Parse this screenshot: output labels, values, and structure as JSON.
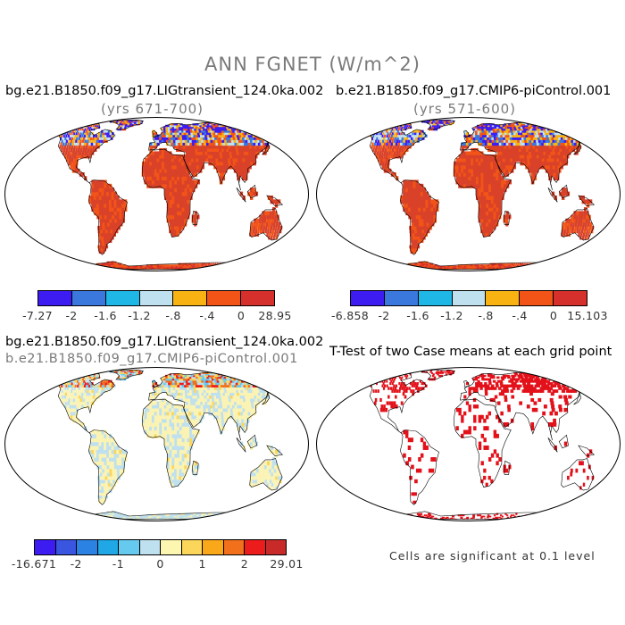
{
  "figure": {
    "title": "ANN FGNET (W/m^2)"
  },
  "panels": [
    {
      "id": "case1",
      "title": "bg.e21.B1850.f09_g17.LIGtransient_124.0ka.002",
      "subtitle": "(yrs 671-700)",
      "colorbar": {
        "colors": [
          "#3d1cf2",
          "#3a78dd",
          "#1fb7e6",
          "#bfe0ee",
          "#f8b313",
          "#f25418",
          "#d6302c"
        ],
        "labels": [
          "-7.27",
          "-2",
          "-1.6",
          "-1.2",
          "-.8",
          "-.4",
          "0",
          "28.95"
        ]
      },
      "land_color": "#d94229",
      "high_lat_palette": [
        "#3d1cf2",
        "#3a78dd",
        "#bfe0ee",
        "#f8b313",
        "#f25418"
      ]
    },
    {
      "id": "case2",
      "title": "b.e21.B1850.f09_g17.CMIP6-piControl.001",
      "subtitle": "(yrs 571-600)",
      "colorbar": {
        "colors": [
          "#3d1cf2",
          "#3a78dd",
          "#1fb7e6",
          "#bfe0ee",
          "#f8b313",
          "#f25418",
          "#d6302c"
        ],
        "labels": [
          "-6.858",
          "-2",
          "-1.6",
          "-1.2",
          "-.8",
          "-.4",
          "0",
          "15.103"
        ]
      },
      "land_color": "#d94229",
      "high_lat_palette": [
        "#3d1cf2",
        "#3a78dd",
        "#bfe0ee",
        "#f8b313",
        "#f25418"
      ]
    },
    {
      "id": "diff",
      "title": "bg.e21.B1850.f09_g17.LIGtransient_124.0ka.002",
      "subtitle": "b.e21.B1850.f09_g17.CMIP6-piControl.001",
      "colorbar": {
        "colors": [
          "#3d1cf2",
          "#3a55e0",
          "#2b82e2",
          "#1fa7e6",
          "#66c9ee",
          "#bfe0ee",
          "#fdf6b0",
          "#fbd65a",
          "#f8a818",
          "#f2701c",
          "#ec1c1c",
          "#c82a2a"
        ],
        "labels": [
          "-16.671",
          "-2",
          "-1",
          "0",
          "1",
          "2",
          "29.01"
        ]
      },
      "land_color": "#fbf3b4",
      "high_lat_palette": [
        "#bfe0ee",
        "#66c9ee",
        "#fbd65a",
        "#f2701c",
        "#ec1c1c"
      ]
    },
    {
      "id": "ttest",
      "title": "T-Test of two Case means at each grid point",
      "note": "Cells are significant at 0.1 level",
      "sig_color": "#e3111a"
    }
  ]
}
